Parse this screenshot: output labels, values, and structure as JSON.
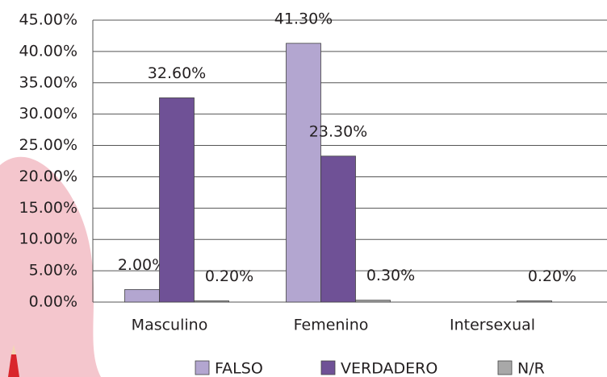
{
  "chart_data": {
    "type": "bar",
    "categories": [
      "Masculino",
      "Femenino",
      "Intersexual"
    ],
    "series": [
      {
        "name": "FALSO",
        "color": "#b3a6d0",
        "values": [
          2.0,
          41.3,
          null
        ],
        "value_labels": [
          "2.00%",
          "41.30%",
          null
        ]
      },
      {
        "name": "VERDADERO",
        "color": "#6f5196",
        "values": [
          32.6,
          23.3,
          null
        ],
        "value_labels": [
          "32.60%",
          "23.30%",
          null
        ]
      },
      {
        "name": "N/R",
        "color": "#a8a8a8",
        "values": [
          0.2,
          0.3,
          0.2
        ],
        "value_labels": [
          "0.20%",
          "0.30%",
          "0.20%"
        ]
      }
    ],
    "ylim": [
      0,
      45
    ],
    "yticks": [
      {
        "value": 0,
        "label": "0.00%"
      },
      {
        "value": 5,
        "label": "5.00%"
      },
      {
        "value": 10,
        "label": "10.00%"
      },
      {
        "value": 15,
        "label": "15.00%"
      },
      {
        "value": 20,
        "label": "20.00%"
      },
      {
        "value": 25,
        "label": "25.00%"
      },
      {
        "value": 30,
        "label": "30.00%"
      },
      {
        "value": 35,
        "label": "35.00%"
      },
      {
        "value": 40,
        "label": "40.00%"
      },
      {
        "value": 45,
        "label": "45.00%"
      }
    ],
    "grid": true,
    "legend": "bottom"
  }
}
